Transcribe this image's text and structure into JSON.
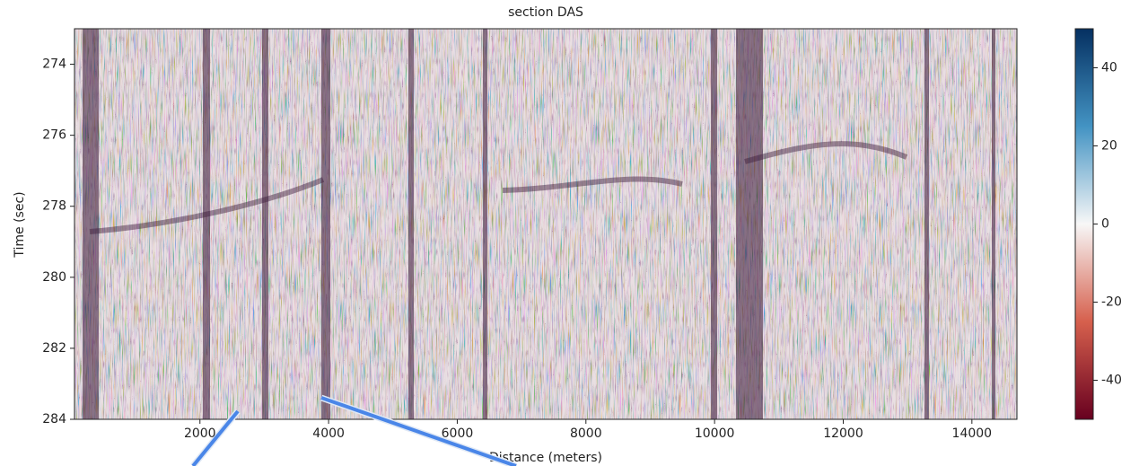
{
  "chart_data": {
    "type": "heatmap",
    "title": "section DAS",
    "x_label": "Distance (meters)",
    "y_label": "Time (sec)",
    "xlim": [
      50,
      14700
    ],
    "xticks": [
      2000,
      4000,
      6000,
      8000,
      10000,
      12000,
      14000
    ],
    "ylim": [
      273,
      284
    ],
    "yticks": [
      274,
      276,
      278,
      280,
      282,
      284
    ],
    "y_inverted": true,
    "colorbar": {
      "clim": [
        -50,
        50
      ],
      "ticks": [
        -40,
        -20,
        0,
        20,
        40
      ],
      "colormap": [
        "#67001f",
        "#d6604d",
        "#f7f7f7",
        "#4393c3",
        "#053061"
      ]
    }
  }
}
